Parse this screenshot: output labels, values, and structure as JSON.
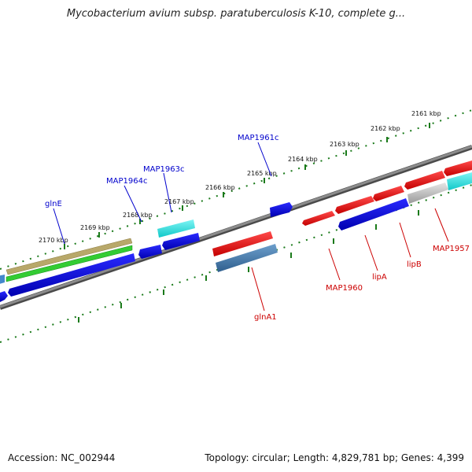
{
  "title": "Mycobacterium avium subsp. paratuberculosis K-10, complete g...",
  "accession": "Accession: NC_002944",
  "summary": "Topology: circular; Length: 4,829,781 bp; Genes: 4,399",
  "ticks": [
    {
      "label": "2161 kbp"
    },
    {
      "label": "2162 kbp"
    },
    {
      "label": "2163 kbp"
    },
    {
      "label": "2164 kbp"
    },
    {
      "label": "2165 kbp"
    },
    {
      "label": "2166 kbp"
    },
    {
      "label": "2167 kbp"
    },
    {
      "label": "2168 kbp"
    },
    {
      "label": "2169 kbp"
    },
    {
      "label": "2170 kbp"
    }
  ],
  "gene_labels": [
    {
      "name": "glnE",
      "color": "#0000cc"
    },
    {
      "name": "MAP1964c",
      "color": "#0000cc"
    },
    {
      "name": "MAP1963c",
      "color": "#0000cc"
    },
    {
      "name": "MAP1961c",
      "color": "#0000cc"
    },
    {
      "name": "glnA1",
      "color": "#cc0000"
    },
    {
      "name": "MAP1960",
      "color": "#cc0000"
    },
    {
      "name": "lipA",
      "color": "#cc0000"
    },
    {
      "name": "lipB",
      "color": "#cc0000"
    },
    {
      "name": "MAP1957",
      "color": "#cc0000"
    }
  ],
  "colors": {
    "backbone": "#808080",
    "tick": "#1a7a1a",
    "forward_gene": "#ee1111",
    "reverse_gene": "#1111dd",
    "cyan_gene": "#22dddd",
    "olive_gene": "#b8a86a",
    "green_gene": "#33cc33",
    "steel_gene": "#4a7fb0",
    "grey_gene": "#bdbdbd"
  }
}
